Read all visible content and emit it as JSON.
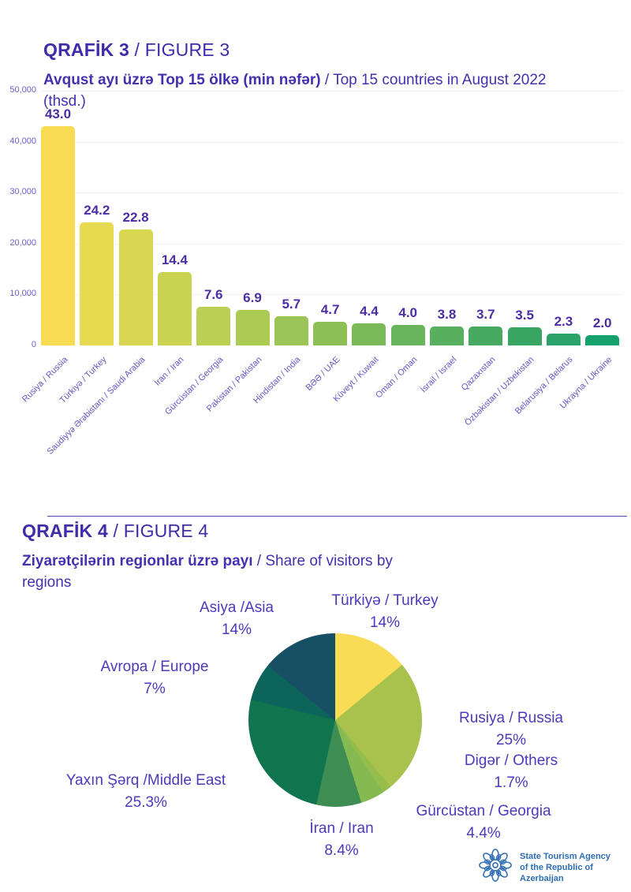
{
  "figure3": {
    "title_bold": "QRAFİK 3",
    "title_rest": " / FIGURE 3",
    "subtitle_bold": "Avqust ayı üzrə Top 15 ölkə (min nəfər)",
    "subtitle_rest1": " / Top 15 countries in August 2022",
    "subtitle_rest2": "(thsd.)"
  },
  "figure4": {
    "title_bold": "QRAFİK 4",
    "title_rest": " / FIGURE 4",
    "subtitle_bold": "Ziyarətçilərin regionlar üzrə payı",
    "subtitle_rest1": " / Share of visitors by",
    "subtitle_rest2": "regions"
  },
  "footer": {
    "agency_line1": "State Tourism Agency",
    "agency_line2": "of the Republic of Azerbaijan",
    "logo_color": "#2e6db4"
  },
  "chart_data": [
    {
      "type": "bar",
      "title": "Avqust ayı üzrə Top 15 ölkə (min nəfər) / Top 15 countries in August 2022 (thsd.)",
      "categories": [
        "Rusiya / Russia",
        "Türkiyə / Turkey",
        "Saudiyyə Ərəbistanı / Saudi Arabia",
        "İran / Iran",
        "Gürcüstan / Georgia",
        "Pakistan / Pakistan",
        "Hindistan / India",
        "BƏƏ / UAE",
        "Küveyt / Kuwait",
        "Oman / Oman",
        "İsrail / Israel",
        "Qazaxıstan",
        "Özbəkistan / Uzbekistan",
        "Belarusiya / Belarus",
        "Ukrayna / Ukraine"
      ],
      "values": [
        43.0,
        24.2,
        22.8,
        14.4,
        7.6,
        6.9,
        5.7,
        4.7,
        4.4,
        4.0,
        3.8,
        3.7,
        3.5,
        2.3,
        2.0
      ],
      "value_labels": [
        "43.0",
        "24.2",
        "22.8",
        "14.4",
        "7.6",
        "6.9",
        "5.7",
        "4.7",
        "4.4",
        "4.0",
        "3.8",
        "3.7",
        "3.5",
        "2.3",
        "2.0"
      ],
      "value_scale": 1000,
      "unit": "min nəfər / thsd.",
      "ylim": [
        0,
        50000
      ],
      "ytick_values": [
        0,
        10000,
        20000,
        30000,
        40000,
        50000
      ],
      "ytick_labels": [
        "0",
        "10,000",
        "20,000",
        "30,000",
        "40,000",
        "50,000"
      ],
      "grid": "horizontal",
      "bar_colors": [
        "#F8DB52",
        "#E6DA51",
        "#D9D750",
        "#CAD351",
        "#BACF53",
        "#ABCB54",
        "#9BC556",
        "#8CC057",
        "#7ABA59",
        "#68B45B",
        "#58AF5D",
        "#48AA60",
        "#38A563",
        "#2AA26A",
        "#14A16C"
      ]
    },
    {
      "type": "pie",
      "title": "Ziyarətçilərin regionlar üzrə payı / Share of visitors by regions",
      "start_angle_deg": 0,
      "direction": "clockwise",
      "slices": [
        {
          "label": "Türkiyə / Turkey",
          "pct": 14,
          "pct_label": "14%",
          "color": "#F9DC55"
        },
        {
          "label": "Rusiya / Russia",
          "pct": 25,
          "pct_label": "25%",
          "color": "#A9C14D"
        },
        {
          "label": "Digər / Others",
          "pct": 1.7,
          "pct_label": "1.7%",
          "color": "#95BD4C"
        },
        {
          "label": "Gürcüstan / Georgia",
          "pct": 4.4,
          "pct_label": "4.4%",
          "color": "#85B951"
        },
        {
          "label": "İran / Iran",
          "pct": 8.4,
          "pct_label": "8.4%",
          "color": "#3E8D52"
        },
        {
          "label": "Yaxın Şərq /Middle East",
          "pct": 25.3,
          "pct_label": "25.3%",
          "color": "#10744F"
        },
        {
          "label": "Avropa / Europe",
          "pct": 7,
          "pct_label": "7%",
          "color": "#0D645A"
        },
        {
          "label": "Asiya /Asia",
          "pct": 14,
          "pct_label": "14%",
          "color": "#174F64"
        }
      ]
    }
  ]
}
